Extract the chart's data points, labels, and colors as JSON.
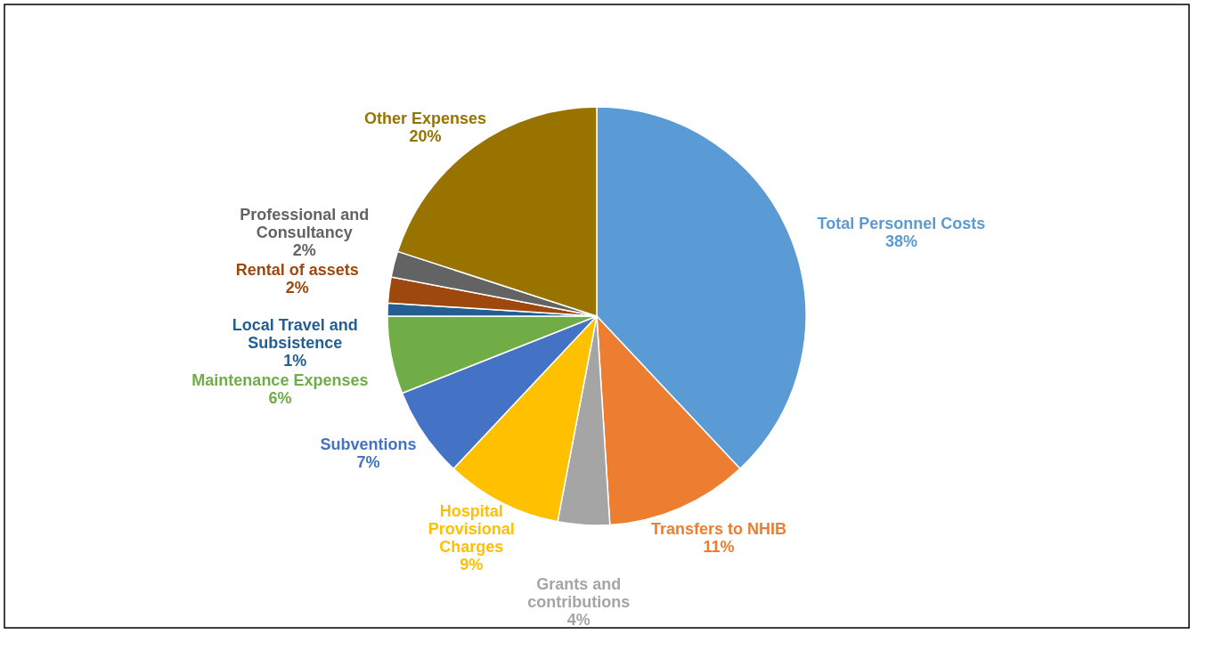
{
  "chart_data": {
    "type": "pie",
    "categories": [
      "Total Personnel Costs",
      "Transfers to NHIB",
      "Grants and contributions",
      "Hospital Provisional Charges",
      "Subventions",
      "Maintenance Expenses",
      "Local Travel and Subsistence",
      "Rental of assets",
      "Professional and Consultancy",
      "Other Expenses"
    ],
    "values": [
      38,
      11,
      4,
      9,
      7,
      6,
      1,
      2,
      2,
      20
    ],
    "colors": [
      "#5b9bd5",
      "#ed7d31",
      "#a5a5a5",
      "#ffc000",
      "#4472c4",
      "#70ad47",
      "#255e91",
      "#9e480e",
      "#636363",
      "#997300"
    ],
    "value_labels": [
      "38%",
      "11%",
      "4%",
      "9%",
      "7%",
      "6%",
      "1%",
      "2%",
      "2%",
      "20%"
    ]
  }
}
